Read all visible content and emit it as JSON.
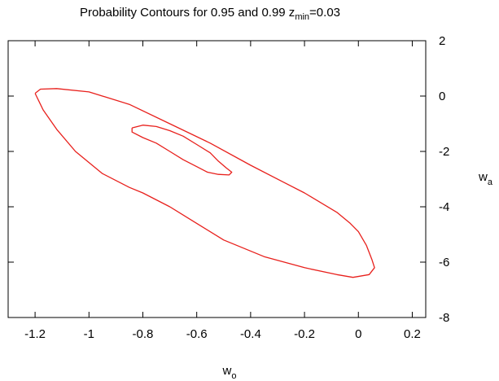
{
  "chart_data": {
    "type": "line",
    "title": {
      "prefix": "Probability Contours for 0.95 and 0.99 z",
      "subscript": "min",
      "suffix": "=0.03"
    },
    "xlabel": {
      "main": "w",
      "sub": "o"
    },
    "ylabel": {
      "main": "w",
      "sub": "a"
    },
    "xlim": [
      -1.3,
      0.25
    ],
    "ylim": [
      -8,
      2
    ],
    "xticks": [
      -1.2,
      -1,
      -0.8,
      -0.6,
      -0.4,
      -0.2,
      0,
      0.2
    ],
    "xtick_labels": [
      "-1.2",
      "-1",
      "-0.8",
      "-0.6",
      "-0.4",
      "-0.2",
      "0",
      "0.2"
    ],
    "yticks": [
      -8,
      -6,
      -4,
      -2,
      0,
      2
    ],
    "ytick_labels": [
      "-8",
      "-6",
      "-4",
      "-2",
      "0",
      "2"
    ],
    "yaxis_side": "right",
    "grid": false,
    "series": [
      {
        "color": "#e8201c",
        "points": [
          [
            -1.2,
            0.1
          ],
          [
            -1.18,
            0.25
          ],
          [
            -1.12,
            0.27
          ],
          [
            -1.0,
            0.15
          ],
          [
            -0.85,
            -0.3
          ],
          [
            -0.7,
            -1.0
          ],
          [
            -0.55,
            -1.7
          ],
          [
            -0.4,
            -2.5
          ],
          [
            -0.28,
            -3.1
          ],
          [
            -0.2,
            -3.5
          ],
          [
            -0.08,
            -4.2
          ],
          [
            -0.03,
            -4.6
          ],
          [
            0.0,
            -4.9
          ],
          [
            0.03,
            -5.4
          ],
          [
            0.05,
            -5.9
          ],
          [
            0.06,
            -6.2
          ],
          [
            0.04,
            -6.45
          ],
          [
            -0.02,
            -6.55
          ],
          [
            -0.08,
            -6.45
          ],
          [
            -0.2,
            -6.2
          ],
          [
            -0.35,
            -5.8
          ],
          [
            -0.5,
            -5.2
          ],
          [
            -0.6,
            -4.6
          ],
          [
            -0.7,
            -4.0
          ],
          [
            -0.8,
            -3.5
          ],
          [
            -0.85,
            -3.3
          ],
          [
            -0.95,
            -2.8
          ],
          [
            -1.05,
            -2.0
          ],
          [
            -1.12,
            -1.2
          ],
          [
            -1.17,
            -0.5
          ],
          [
            -1.2,
            0.1
          ]
        ]
      },
      {
        "color": "#e8201c",
        "points": [
          [
            -0.84,
            -1.15
          ],
          [
            -0.8,
            -1.05
          ],
          [
            -0.75,
            -1.1
          ],
          [
            -0.7,
            -1.25
          ],
          [
            -0.65,
            -1.45
          ],
          [
            -0.6,
            -1.75
          ],
          [
            -0.55,
            -2.05
          ],
          [
            -0.52,
            -2.35
          ],
          [
            -0.49,
            -2.6
          ],
          [
            -0.47,
            -2.75
          ],
          [
            -0.48,
            -2.85
          ],
          [
            -0.52,
            -2.83
          ],
          [
            -0.56,
            -2.75
          ],
          [
            -0.6,
            -2.55
          ],
          [
            -0.65,
            -2.3
          ],
          [
            -0.7,
            -2.0
          ],
          [
            -0.75,
            -1.7
          ],
          [
            -0.8,
            -1.5
          ],
          [
            -0.84,
            -1.3
          ],
          [
            -0.84,
            -1.15
          ]
        ]
      }
    ]
  }
}
